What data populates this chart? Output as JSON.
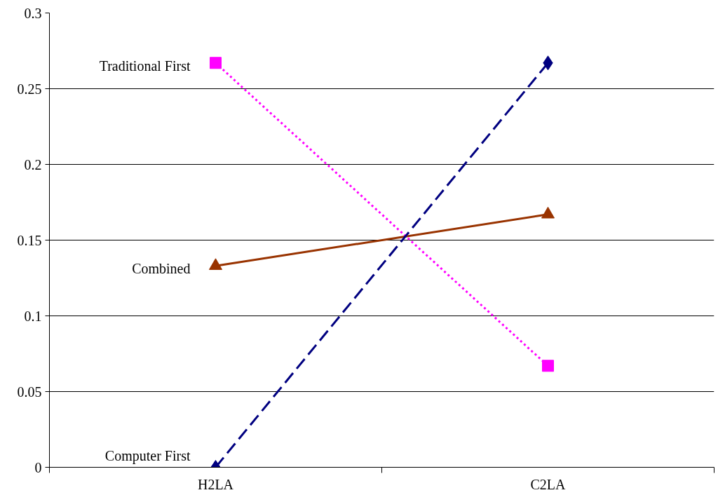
{
  "chart_data": {
    "type": "line",
    "categories": [
      "H2LA",
      "C2LA"
    ],
    "series": [
      {
        "name": "Traditional First",
        "color": "#ff00ff",
        "values": [
          0.267,
          0.067
        ],
        "marker": "square",
        "line_style": "dotted"
      },
      {
        "name": "Combined",
        "color": "#993300",
        "values": [
          0.133,
          0.167
        ],
        "marker": "triangle",
        "line_style": "solid"
      },
      {
        "name": "Computer First",
        "color": "#000080",
        "values": [
          0,
          0.267
        ],
        "marker": "diamond",
        "line_style": "dashed"
      }
    ],
    "ylim": [
      0,
      0.3
    ],
    "yticks": [
      0,
      0.05,
      0.1,
      0.15,
      0.2,
      0.25,
      0.3
    ],
    "grid": "y",
    "legend": false
  }
}
